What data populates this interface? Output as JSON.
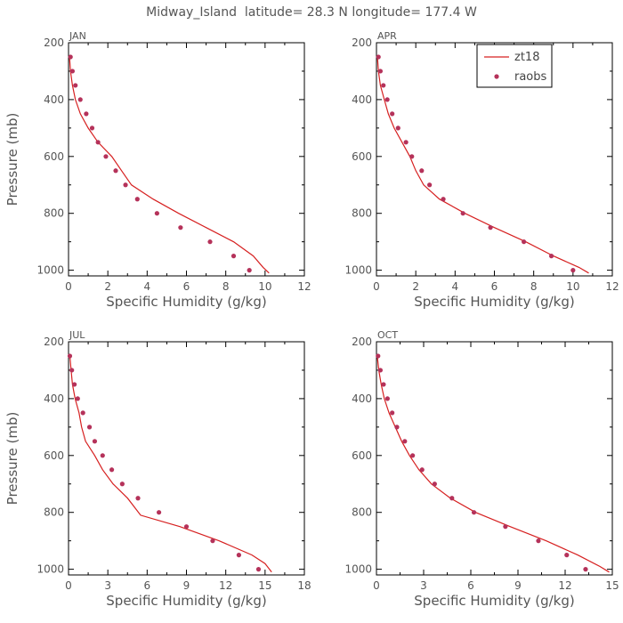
{
  "title": "Midway_Island  latitude= 28.3 N longitude= 177.4 W",
  "colors": {
    "model": "#d62020",
    "obs": "#b5325a"
  },
  "legend": {
    "model_label": "zt18",
    "obs_label": "raobs",
    "placement": "top-right of APR panel"
  },
  "chart_data": [
    {
      "type": "line",
      "panel": "JAN",
      "xlabel": "Specific Humidity (g/kg)",
      "ylabel": "Pressure (mb)",
      "xlim": [
        0,
        12
      ],
      "ylim": [
        200,
        1020
      ],
      "y_inverted": true,
      "xticks": [
        0,
        2,
        4,
        6,
        8,
        10,
        12
      ],
      "xtick_labels": [
        "0",
        "2",
        "4",
        "6",
        "8",
        "10",
        "12"
      ],
      "yticks": [
        200,
        400,
        600,
        800,
        1000
      ],
      "ytick_labels": [
        "200",
        "400",
        "600",
        "800",
        "1000"
      ],
      "series": [
        {
          "name": "zt18",
          "kind": "line",
          "x": [
            0.05,
            0.1,
            0.2,
            0.35,
            0.6,
            1.0,
            1.5,
            2.2,
            2.7,
            3.2,
            4.3,
            5.6,
            7.0,
            8.4,
            9.4,
            9.9,
            10.2
          ],
          "y": [
            250,
            300,
            350,
            400,
            450,
            500,
            550,
            600,
            650,
            700,
            750,
            800,
            850,
            900,
            950,
            990,
            1010
          ]
        },
        {
          "name": "raobs",
          "kind": "scatter",
          "x": [
            0.1,
            0.2,
            0.35,
            0.6,
            0.9,
            1.2,
            1.5,
            1.9,
            2.4,
            2.9,
            3.5,
            4.5,
            5.7,
            7.2,
            8.4,
            9.2
          ],
          "y": [
            250,
            300,
            350,
            400,
            450,
            500,
            550,
            600,
            650,
            700,
            750,
            800,
            850,
            900,
            950,
            1000
          ]
        }
      ]
    },
    {
      "type": "line",
      "panel": "APR",
      "xlabel": "Specific Humidity (g/kg)",
      "ylabel": "",
      "xlim": [
        0,
        12
      ],
      "ylim": [
        200,
        1020
      ],
      "y_inverted": true,
      "xticks": [
        0,
        2,
        4,
        6,
        8,
        10,
        12
      ],
      "xtick_labels": [
        "0",
        "2",
        "4",
        "6",
        "8",
        "10",
        "12"
      ],
      "yticks": [
        200,
        400,
        600,
        800,
        1000
      ],
      "ytick_labels": [
        "200",
        "400",
        "600",
        "800",
        "1000"
      ],
      "series": [
        {
          "name": "zt18",
          "kind": "line",
          "x": [
            0.05,
            0.1,
            0.2,
            0.4,
            0.6,
            0.9,
            1.3,
            1.7,
            2.0,
            2.4,
            3.2,
            4.5,
            6.0,
            7.6,
            9.0,
            10.3,
            10.8
          ],
          "y": [
            250,
            300,
            350,
            400,
            450,
            500,
            550,
            600,
            650,
            700,
            750,
            800,
            850,
            900,
            950,
            990,
            1010
          ]
        },
        {
          "name": "raobs",
          "kind": "scatter",
          "x": [
            0.1,
            0.2,
            0.35,
            0.55,
            0.8,
            1.1,
            1.5,
            1.8,
            2.3,
            2.7,
            3.4,
            4.4,
            5.8,
            7.5,
            8.9,
            10.0
          ],
          "y": [
            250,
            300,
            350,
            400,
            450,
            500,
            550,
            600,
            650,
            700,
            750,
            800,
            850,
            900,
            950,
            1000
          ]
        }
      ]
    },
    {
      "type": "line",
      "panel": "JUL",
      "xlabel": "Specific Humidity (g/kg)",
      "ylabel": "Pressure (mb)",
      "xlim": [
        0,
        18
      ],
      "ylim": [
        200,
        1020
      ],
      "y_inverted": true,
      "xticks": [
        0,
        3,
        6,
        9,
        12,
        15,
        18
      ],
      "xtick_labels": [
        "0",
        "3",
        "6",
        "9",
        "12",
        "15",
        "18"
      ],
      "yticks": [
        200,
        400,
        600,
        800,
        1000
      ],
      "ytick_labels": [
        "200",
        "400",
        "600",
        "800",
        "1000"
      ],
      "series": [
        {
          "name": "zt18",
          "kind": "line",
          "x": [
            0.1,
            0.2,
            0.3,
            0.5,
            0.8,
            1.0,
            1.3,
            2.0,
            2.6,
            3.4,
            4.5,
            5.5,
            8.5,
            11.5,
            14.0,
            15.0,
            15.5
          ],
          "y": [
            250,
            300,
            350,
            400,
            450,
            500,
            550,
            600,
            650,
            700,
            750,
            810,
            850,
            900,
            950,
            980,
            1010
          ]
        },
        {
          "name": "raobs",
          "kind": "scatter",
          "x": [
            0.1,
            0.25,
            0.45,
            0.7,
            1.1,
            1.6,
            2.0,
            2.6,
            3.3,
            4.1,
            5.3,
            6.9,
            9.0,
            11.0,
            13.0,
            14.5
          ],
          "y": [
            250,
            300,
            350,
            400,
            450,
            500,
            550,
            600,
            650,
            700,
            750,
            800,
            850,
            900,
            950,
            1000
          ]
        }
      ]
    },
    {
      "type": "line",
      "panel": "OCT",
      "xlabel": "Specific Humidity (g/kg)",
      "ylabel": "",
      "xlim": [
        0,
        15
      ],
      "ylim": [
        200,
        1020
      ],
      "y_inverted": true,
      "xticks": [
        0,
        3,
        6,
        9,
        12,
        15
      ],
      "xtick_labels": [
        "0",
        "3",
        "6",
        "9",
        "12",
        "15"
      ],
      "yticks": [
        200,
        400,
        600,
        800,
        1000
      ],
      "ytick_labels": [
        "200",
        "400",
        "600",
        "800",
        "1000"
      ],
      "series": [
        {
          "name": "zt18",
          "kind": "line",
          "x": [
            0.05,
            0.15,
            0.3,
            0.5,
            0.8,
            1.2,
            1.6,
            2.1,
            2.7,
            3.5,
            4.7,
            6.3,
            8.5,
            10.8,
            12.8,
            14.2,
            14.8
          ],
          "y": [
            250,
            300,
            350,
            400,
            450,
            500,
            550,
            600,
            650,
            700,
            750,
            800,
            850,
            900,
            950,
            990,
            1010
          ]
        },
        {
          "name": "raobs",
          "kind": "scatter",
          "x": [
            0.1,
            0.25,
            0.45,
            0.7,
            1.0,
            1.3,
            1.8,
            2.3,
            2.9,
            3.7,
            4.8,
            6.2,
            8.2,
            10.3,
            12.1,
            13.3
          ],
          "y": [
            250,
            300,
            350,
            400,
            450,
            500,
            550,
            600,
            650,
            700,
            750,
            800,
            850,
            900,
            950,
            1000
          ]
        }
      ]
    }
  ]
}
